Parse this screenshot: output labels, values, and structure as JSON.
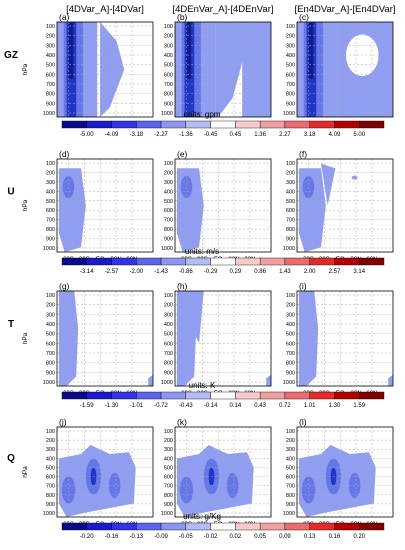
{
  "chart_data": {
    "type": "heatmap",
    "columns": [
      "[4DVar_A]-[4DVar]",
      "[4DEnVar_A]-[4DEnVar]",
      "[En4DVar_A]-[En4DVar]"
    ],
    "x_ticks": [
      "60S",
      "30S",
      "EQ",
      "30N",
      "60N"
    ],
    "y_label": "hPa",
    "y_ticks_gz": [
      "100",
      "200",
      "300",
      "400",
      "500",
      "600",
      "700",
      "800",
      "900",
      "1000"
    ],
    "y_ticks": [
      "100",
      "200",
      "300",
      "400",
      "500",
      "600",
      "700",
      "800",
      "900",
      "1000"
    ],
    "rows": [
      {
        "variable": "GZ",
        "panels": [
          "(a)",
          "(b)",
          "(c)"
        ],
        "units": "units: gpm",
        "colorbar": [
          "-5.00",
          "-4.09",
          "-3.18",
          "-2.27",
          "-1.36",
          "-0.45",
          "0.45",
          "1.36",
          "2.27",
          "3.18",
          "4.09",
          "5.00"
        ]
      },
      {
        "variable": "U",
        "panels": [
          "(d)",
          "(e)",
          "(f)"
        ],
        "units": "units: m/s",
        "colorbar": [
          "-3.14",
          "-2.57",
          "-2.00",
          "-1.43",
          "-0.86",
          "-0.29",
          "0.29",
          "0.86",
          "1.43",
          "2.00",
          "2.57",
          "3.14"
        ]
      },
      {
        "variable": "T",
        "panels": [
          "(g)",
          "(h)",
          "(i)"
        ],
        "units": "units: K",
        "colorbar": [
          "-1.59",
          "-1.30",
          "-1.01",
          "-0.72",
          "-0.43",
          "-0.14",
          "0.14",
          "0.43",
          "0.72",
          "1.01",
          "1.30",
          "1.59"
        ]
      },
      {
        "variable": "Q",
        "panels": [
          "(j)",
          "(k)",
          "(l)"
        ],
        "units": "units: g/Kg",
        "colorbar": [
          "-0.20",
          "-0.16",
          "-0.13",
          "-0.09",
          "-0.05",
          "-0.02",
          "0.02",
          "0.05",
          "0.09",
          "0.13",
          "0.16",
          "0.20"
        ]
      }
    ],
    "colorbar_colors": [
      "#0a0a8c",
      "#1a1acc",
      "#3333e6",
      "#5a64ee",
      "#8c96f0",
      "#b4bcf6",
      "#ffffff",
      "#f7caca",
      "#f0a0a0",
      "#ec6c6c",
      "#e62a2a",
      "#b40000",
      "#820000"
    ]
  }
}
